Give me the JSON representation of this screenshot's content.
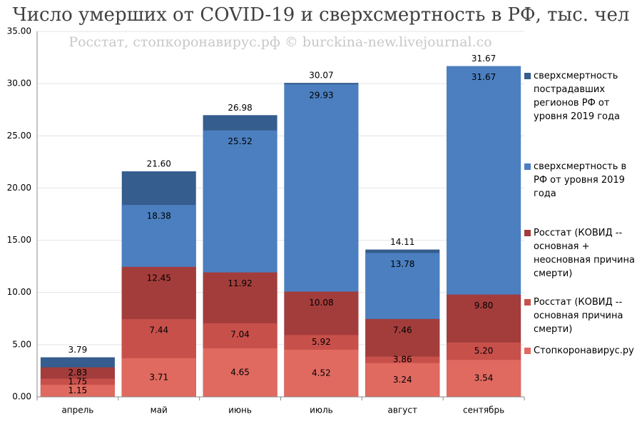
{
  "chart_data": {
    "type": "bar",
    "title": "Число умерших от COVID-19 и сверхсмертность в РФ, тыс. чел",
    "subtitle": "Росстат, стопкоронавирус.рф © burckina-new.livejournal.co",
    "categories": [
      "апрель",
      "май",
      "июнь",
      "июль",
      "август",
      "сентябрь"
    ],
    "series": [
      {
        "name": "Стопкоронавирус.ру",
        "color": "#e06a60",
        "values": [
          1.15,
          3.71,
          4.65,
          4.52,
          3.24,
          3.54
        ],
        "value_labels": [
          "1.15",
          "3.71",
          "4.65",
          "4.52",
          "3.24",
          "3.54"
        ]
      },
      {
        "name": "Росстат (КОВИД -- основная причина смерти)",
        "color": "#c8504b",
        "values": [
          1.75,
          7.44,
          7.04,
          5.92,
          3.86,
          5.2
        ],
        "value_labels": [
          "1.75",
          "7.44",
          "7.04",
          "5.92",
          "3.86",
          "5.20"
        ]
      },
      {
        "name": "Росстат (КОВИД -- основная + неосновная причина смерти)",
        "color": "#a33d3b",
        "values": [
          2.83,
          12.45,
          11.92,
          10.08,
          7.46,
          9.8
        ],
        "value_labels": [
          "2.83",
          "12.45",
          "11.92",
          "10.08",
          "7.46",
          "9.80"
        ]
      },
      {
        "name": "сверхсмертность в РФ от уровня 2019 года",
        "color": "#4b7fc0",
        "values": [
          null,
          18.38,
          25.52,
          29.93,
          13.78,
          31.67
        ],
        "value_labels": [
          null,
          "18.38",
          "25.52",
          "29.93",
          "13.78",
          "31.67"
        ]
      },
      {
        "name": "сверхсмертность пострадавших регионов РФ от уровня 2019 года",
        "color": "#355d8d",
        "values": [
          3.79,
          21.6,
          26.98,
          30.07,
          14.11,
          31.67
        ],
        "value_labels": [
          "3.79",
          "21.60",
          "26.98",
          "30.07",
          "14.11",
          "31.67"
        ]
      }
    ],
    "ylim": [
      0,
      35
    ],
    "yticks": [
      {
        "value": 0,
        "label": "0.00"
      },
      {
        "value": 5,
        "label": "5.00"
      },
      {
        "value": 10,
        "label": "10.00"
      },
      {
        "value": 15,
        "label": "15.00"
      },
      {
        "value": 20,
        "label": "20.00"
      },
      {
        "value": 25,
        "label": "25.00"
      },
      {
        "value": 30,
        "label": "30.00"
      },
      {
        "value": 35,
        "label": "35.00"
      }
    ],
    "grid": true
  }
}
